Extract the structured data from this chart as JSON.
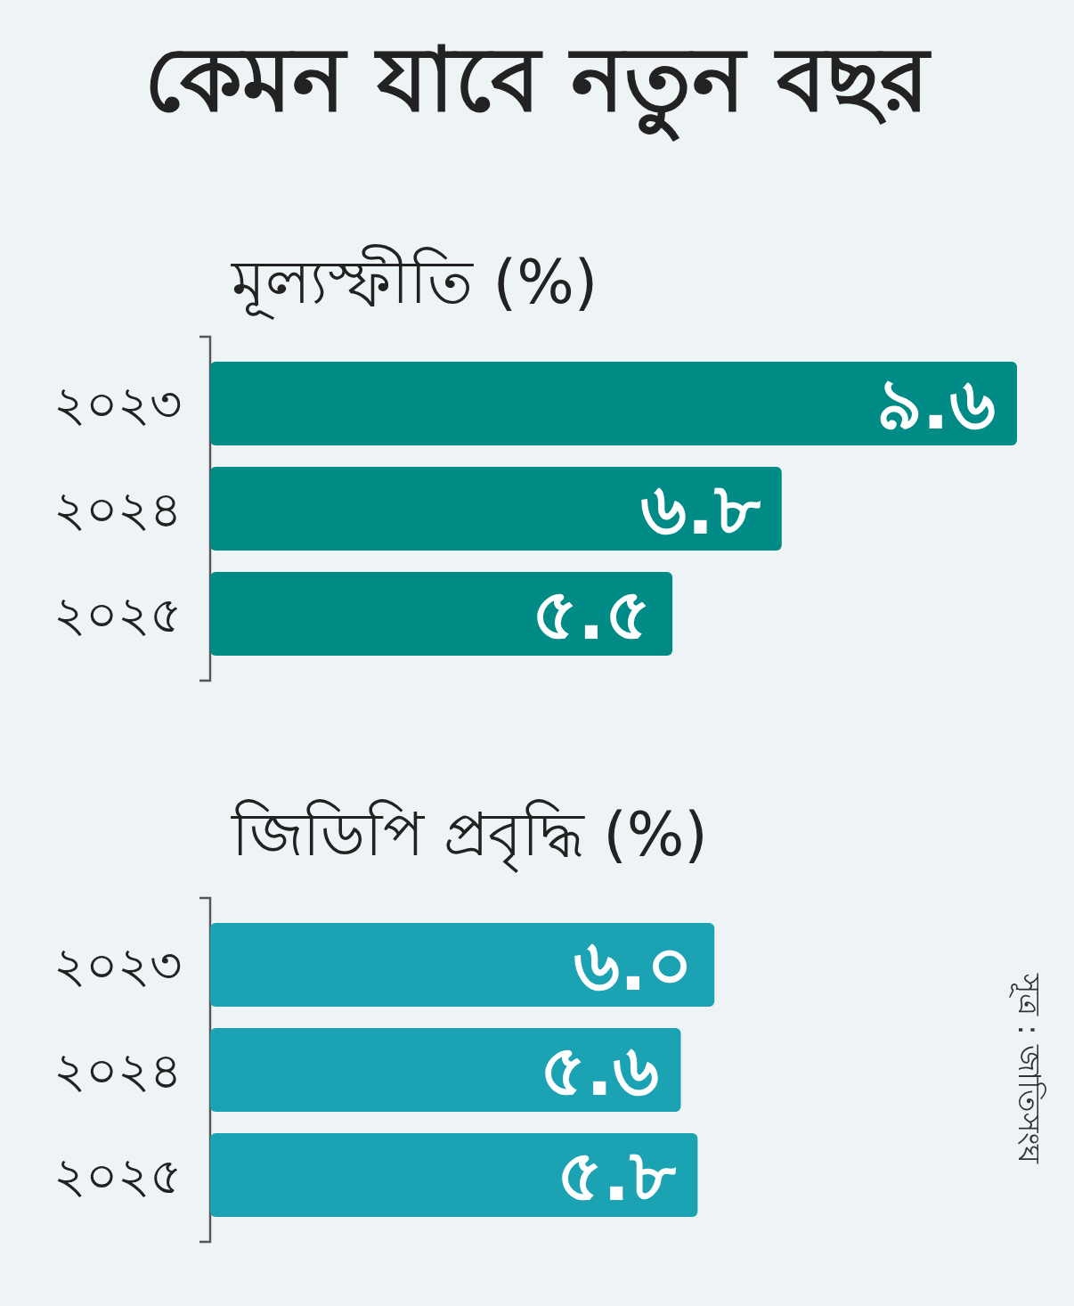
{
  "chart_data": [
    {
      "type": "bar",
      "orientation": "horizontal",
      "title": "কেমন যাবে নতুন বছর",
      "subtitle": "মূল্যস্ফীতি (%)",
      "categories": [
        "২০২৩",
        "২০২৪",
        "২০২৫"
      ],
      "values": [
        9.6,
        6.8,
        5.5
      ],
      "value_labels": [
        "৯.৬",
        "৬.৮",
        "৫.৫"
      ],
      "color": "#008b86"
    },
    {
      "type": "bar",
      "orientation": "horizontal",
      "title": "জিডিপি প্রবৃদ্ধি (%)",
      "categories": [
        "২০২৩",
        "২০২৪",
        "২০২৫"
      ],
      "values": [
        6.0,
        5.6,
        5.8
      ],
      "value_labels": [
        "৬.০",
        "৫.৬",
        "৫.৮"
      ],
      "color": "#1ba3b3",
      "annotations": [
        "সূত্র : জাতিসংঘ"
      ]
    }
  ]
}
